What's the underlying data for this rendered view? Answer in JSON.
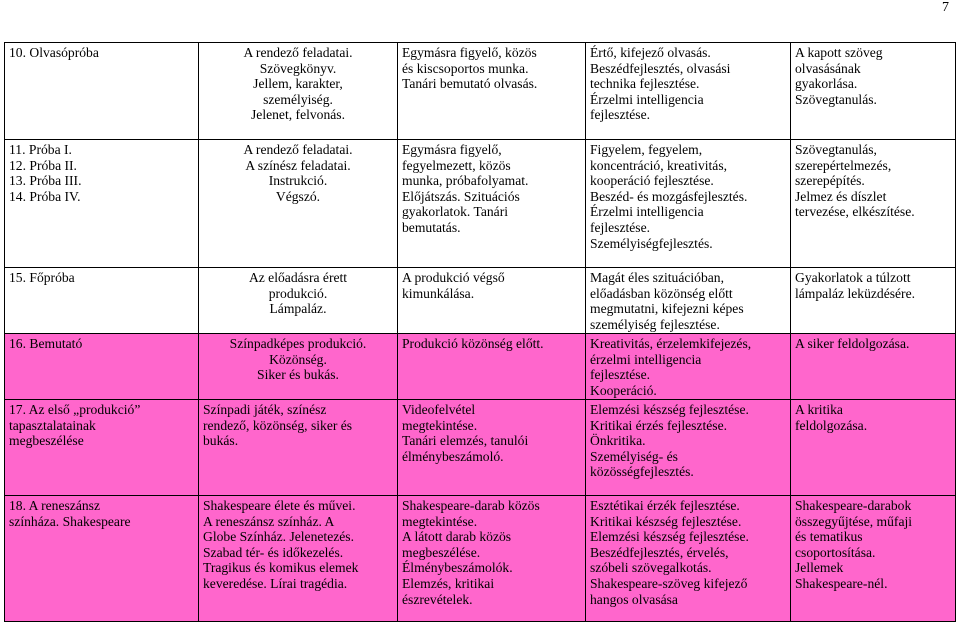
{
  "page_number": "7",
  "colors": {
    "highlight_row": "#ff66cc"
  },
  "rows": [
    {
      "label": "10.  Olvasópróba",
      "content": "A rendező feladatai.\nSzövegkönyv.\nJellem, karakter,\nszemélyiség.\nJelenet, felvonás.",
      "method": "Egymásra figyelő, közös\nés kiscsoportos munka.\nTanári bemutató olvasás.",
      "development": "Értő, kifejező olvasás.\nBeszédfejlesztés, olvasási\ntechnika fejlesztése.\nÉrzelmi intelligencia\nfejlesztése.",
      "goal": "A kapott szöveg\nolvasásának\ngyakorlása.\nSzövegtanulás.",
      "highlight": false
    },
    {
      "label": "11.  Próba I.\n12.  Próba II.\n13.  Próba III.\n14.  Próba IV.",
      "content": "A rendező feladatai.\nA színész feladatai.\nInstrukció.\nVégszó.",
      "method": "Egymásra figyelő,\nfegyelmezett, közös\nmunka, próbafolyamat.\nElőjátszás. Szituációs\ngyakorlatok. Tanári\nbemutatás.",
      "development": "Figyelem, fegyelem,\nkoncentráció, kreativitás,\nkooperáció fejlesztése.\nBeszéd- és mozgásfejlesztés.\nÉrzelmi intelligencia\nfejlesztése.\nSzemélyiségfejlesztés.",
      "goal": "Szövegtanulás,\nszerepértelmezés,\nszerepépítés.\nJelmez és díszlet\ntervezése, elkészítése.",
      "highlight": false
    },
    {
      "label": "15.  Főpróba",
      "content": "Az előadásra érett\nprodukció.\nLámpaláz.",
      "method": "A produkció végső\nkimunkálása.",
      "development": "Magát éles szituációban,\nelőadásban közönség előtt\nmegmutatni, kifejezni képes\nszemélyiség fejlesztése.",
      "goal": "Gyakorlatok a túlzott\nlámpaláz leküzdésére.",
      "highlight": false
    },
    {
      "label": "16.  Bemutató",
      "content": "Színpadképes produkció.\nKözönség.\nSiker és bukás.",
      "method": "Produkció közönség előtt.",
      "development": "Kreativitás, érzelemkifejezés,\nérzelmi intelligencia\nfejlesztése.\nKooperáció.",
      "goal": "A siker feldolgozása.",
      "highlight": true
    },
    {
      "label": "17.  Az első „produkció”\ntapasztalatainak\nmegbeszélése",
      "content": "Színpadi játék, színész\nrendező, közönség, siker és\nbukás.",
      "method": "Videofelvétel\nmegtekintése.\nTanári elemzés, tanulói\nélménybeszámoló.",
      "development": "Elemzési készség fejlesztése.\nKritikai érzés fejlesztése.\nÖnkritika.\nSzemélyiség- és\nközösségfejlesztés.",
      "goal": "A kritika\nfeldolgozása.",
      "highlight": true
    },
    {
      "label": "18.  A reneszánsz\nszínháza. Shakespeare",
      "content": "Shakespeare élete és művei.\nA reneszánsz színház. A\nGlobe Színház. Jelenetezés.\nSzabad tér- és időkezelés.\nTragikus és komikus elemek\nkeveredése. Lírai tragédia.",
      "method": "Shakespeare-darab közös\nmegtekintése.\nA látott darab közös\nmegbeszélése.\nÉlménybeszámolók.\nElemzés, kritikai\nészrevételek.",
      "development": "Esztétikai érzék fejlesztése.\nKritikai készség fejlesztése.\nElemzési készség fejlesztése.\nBeszédfejlesztés, érvelés,\nszóbeli szövegalkotás.\nShakespeare-szöveg kifejező\nhangos olvasása",
      "goal": "Shakespeare-darabok\nösszegyűjtése, műfaji\nés tematikus\ncsoportosítása.\nJellemek\nShakespeare-nél.",
      "highlight": true
    }
  ]
}
